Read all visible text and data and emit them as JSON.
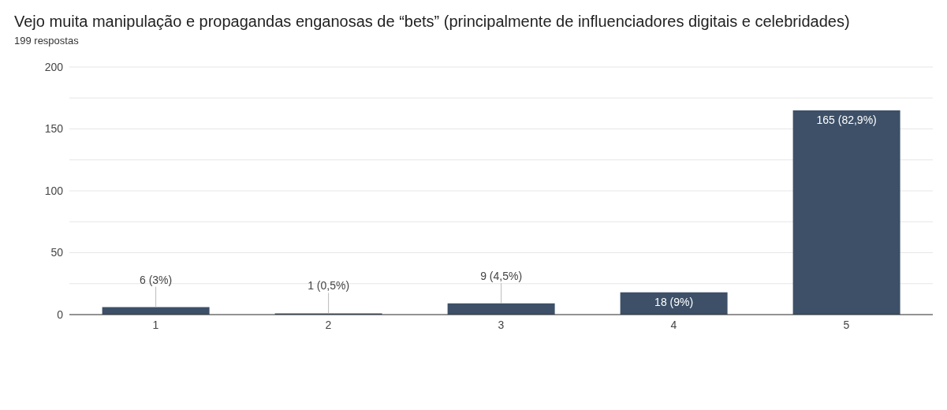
{
  "chart_data": {
    "type": "bar",
    "title": "Vejo muita manipulação e propagandas enganosas de “bets” (principalmente de influenciadores digitais e celebridades)",
    "subtitle": "199 respostas",
    "categories": [
      "1",
      "2",
      "3",
      "4",
      "5"
    ],
    "values": [
      6,
      1,
      9,
      18,
      165
    ],
    "value_labels": [
      "6 (3%)",
      "1 (0,5%)",
      "9 (4,5%)",
      "18 (9%)",
      "165 (82,9%)"
    ],
    "color": "#3d5068",
    "ylim": [
      0,
      200
    ],
    "yticks": [
      0,
      {
        "value": 25,
        "label": null
      },
      50,
      {
        "value": 75,
        "label": null
      },
      100,
      {
        "value": 125,
        "label": null
      },
      150,
      {
        "value": 175,
        "label": null
      },
      200
    ],
    "grid": "y",
    "legend": false
  }
}
